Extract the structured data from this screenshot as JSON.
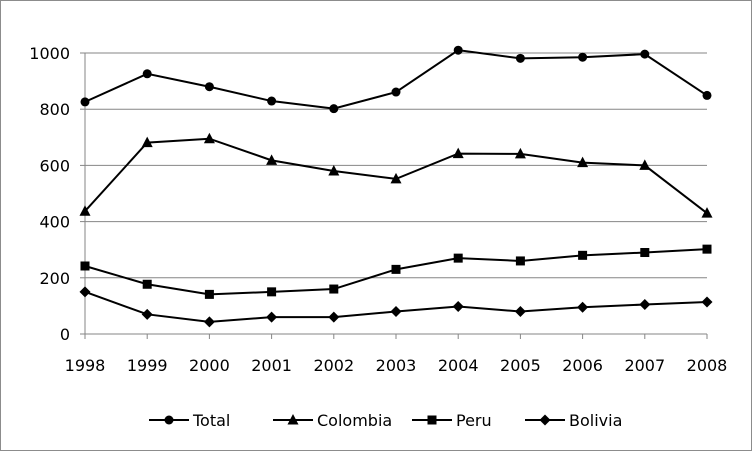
{
  "chart_data": {
    "type": "line",
    "x": [
      "1998",
      "1999",
      "2000",
      "2001",
      "2002",
      "2003",
      "2004",
      "2005",
      "2006",
      "2007",
      "2008"
    ],
    "ylim": [
      0,
      1000
    ],
    "yticks": [
      "0",
      "200",
      "400",
      "600",
      "800",
      "1000"
    ],
    "grid": "horizontal",
    "legend_position": "bottom",
    "series": [
      {
        "name": "Total",
        "marker": "circle",
        "values": [
          826,
          926,
          880,
          829,
          802,
          861,
          1010,
          981,
          985,
          996,
          849
        ]
      },
      {
        "name": "Colombia",
        "marker": "triangle",
        "values": [
          437,
          681,
          695,
          618,
          580,
          552,
          642,
          641,
          610,
          600,
          430
        ]
      },
      {
        "name": "Peru",
        "marker": "square",
        "values": [
          242,
          177,
          141,
          150,
          160,
          230,
          270,
          260,
          280,
          290,
          302
        ]
      },
      {
        "name": "Bolivia",
        "marker": "diamond",
        "values": [
          150,
          70,
          43,
          60,
          60,
          80,
          98,
          80,
          95,
          105,
          114
        ]
      }
    ],
    "colors": {
      "line": "#000000",
      "grid": "#868686",
      "axis": "#868686"
    }
  }
}
